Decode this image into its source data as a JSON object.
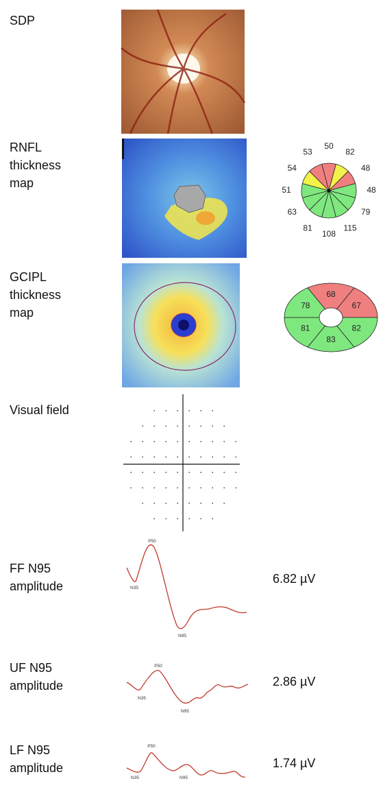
{
  "rows": [
    {
      "label": [
        "SDP"
      ]
    },
    {
      "label": [
        "RNFL",
        "thickness",
        "map"
      ],
      "sectors": [
        {
          "value": "50",
          "color": "#f08080"
        },
        {
          "value": "82",
          "color": "#f2f24a"
        },
        {
          "value": "48",
          "color": "#f08080"
        },
        {
          "value": "48",
          "color": "#7ee87e"
        },
        {
          "value": "79",
          "color": "#7ee87e"
        },
        {
          "value": "115",
          "color": "#7ee87e"
        },
        {
          "value": "108",
          "color": "#7ee87e"
        },
        {
          "value": "81",
          "color": "#7ee87e"
        },
        {
          "value": "63",
          "color": "#7ee87e"
        },
        {
          "value": "51",
          "color": "#7ee87e"
        },
        {
          "value": "54",
          "color": "#f2f24a"
        },
        {
          "value": "53",
          "color": "#f08080"
        }
      ]
    },
    {
      "label": [
        "GCIPL",
        "thickness",
        "map"
      ],
      "sectors": [
        {
          "value": "68",
          "color": "#f08080"
        },
        {
          "value": "67",
          "color": "#f08080"
        },
        {
          "value": "82",
          "color": "#7ee87e"
        },
        {
          "value": "83",
          "color": "#7ee87e"
        },
        {
          "value": "81",
          "color": "#7ee87e"
        },
        {
          "value": "78",
          "color": "#7ee87e"
        }
      ]
    },
    {
      "label": [
        "Visual field"
      ]
    },
    {
      "label": [
        "FF N95",
        "amplitude"
      ],
      "peaks": [
        "P50",
        "N35",
        "N95"
      ],
      "amplitude": "6.82 µV"
    },
    {
      "label": [
        "UF N95",
        "amplitude"
      ],
      "peaks": [
        "P50",
        "N35",
        "N95"
      ],
      "amplitude": "2.86 µV"
    },
    {
      "label": [
        "LF N95",
        "amplitude"
      ],
      "peaks": [
        "P50",
        "N35",
        "N95"
      ],
      "amplitude": "1.74 µV"
    }
  ]
}
